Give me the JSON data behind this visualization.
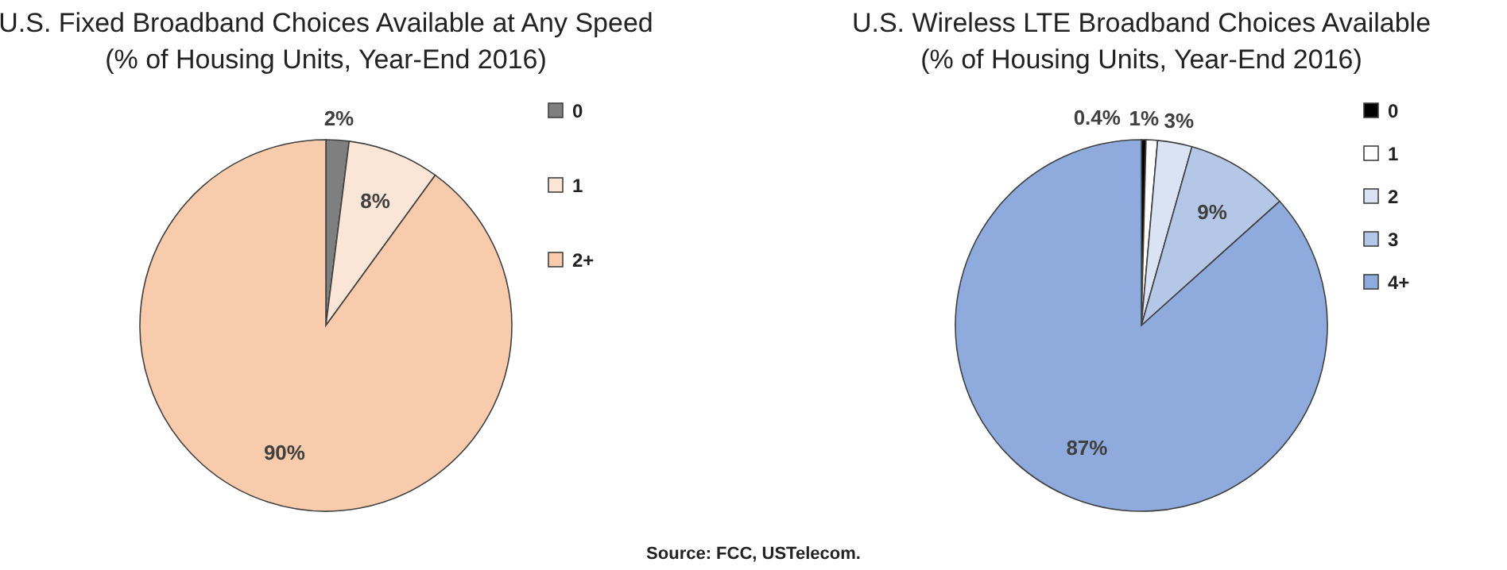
{
  "chart_data": [
    {
      "type": "pie",
      "title": "U.S. Fixed Broadband Choices Available at Any Speed",
      "subtitle": "(% of Housing Units, Year-End 2016)",
      "categories": [
        "0",
        "1",
        "2+"
      ],
      "values": [
        2,
        8,
        90
      ],
      "colors": [
        "#7f7f7f",
        "#fbe5d6",
        "#f8cbad"
      ],
      "value_labels": [
        "2%",
        "8%",
        "90%"
      ],
      "legend": "right"
    },
    {
      "type": "pie",
      "title": "U.S. Wireless LTE Broadband Choices Available",
      "subtitle": "(% of Housing Units, Year-End 2016)",
      "categories": [
        "0",
        "1",
        "2",
        "3",
        "4+"
      ],
      "values": [
        0.4,
        1,
        3,
        9,
        87
      ],
      "colors": [
        "#000000",
        "#ffffff",
        "#dae3f3",
        "#b4c7e7",
        "#8faadc"
      ],
      "value_labels": [
        "0.4%",
        "1%",
        "3%",
        "9%",
        "87%"
      ],
      "legend": "right",
      "annotations": [
        "Source: FCC, USTelecom."
      ]
    }
  ]
}
